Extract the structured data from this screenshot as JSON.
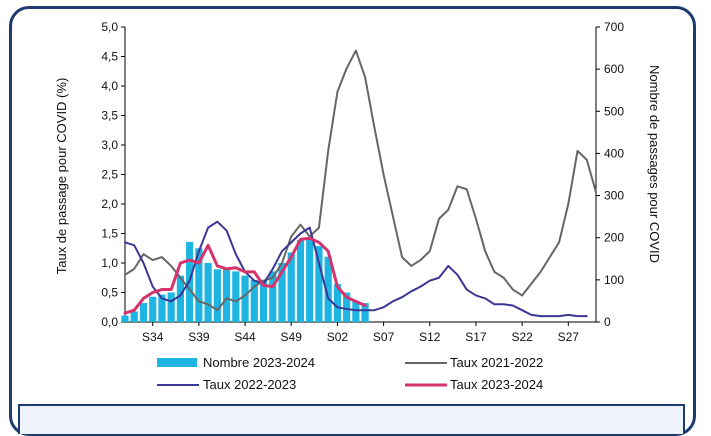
{
  "chart_data": {
    "type": "bar+line",
    "x_ticks": [
      "S34",
      "S39",
      "S44",
      "S49",
      "S02",
      "S07",
      "S12",
      "S17",
      "S22",
      "S27"
    ],
    "y_left": {
      "label": "Taux de passage pour COVID (%)",
      "min": 0,
      "max": 5,
      "ticks": [
        "0,0",
        "0,5",
        "1,0",
        "1,5",
        "2,0",
        "2,5",
        "3,0",
        "3,5",
        "4,0",
        "4,5",
        "5,0"
      ]
    },
    "y_right": {
      "label": "Nombre de passages pour COVID",
      "min": 0,
      "max": 700,
      "ticks": [
        "0",
        "100",
        "200",
        "300",
        "400",
        "500",
        "600",
        "700"
      ]
    },
    "legend": {
      "bars": "Nombre 2023-2024",
      "s2122": "Taux 2021-2022",
      "s2223": "Taux 2022-2023",
      "s2324": "Taux 2023-2024"
    },
    "bars": {
      "name": "Nombre 2023-2024",
      "axis": "right",
      "color": "#1fb5e3",
      "values": [
        15,
        25,
        45,
        60,
        65,
        70,
        110,
        190,
        175,
        140,
        125,
        125,
        120,
        110,
        100,
        100,
        120,
        140,
        165,
        195,
        200,
        180,
        155,
        90,
        70,
        50,
        45
      ]
    },
    "series": [
      {
        "name": "Taux 2021-2022",
        "color": "#666666",
        "width": 2,
        "axis": "left",
        "values": [
          0.8,
          0.9,
          1.15,
          1.05,
          1.1,
          0.95,
          0.75,
          0.55,
          0.35,
          0.3,
          0.2,
          0.4,
          0.35,
          0.45,
          0.6,
          0.7,
          0.75,
          1.0,
          1.45,
          1.65,
          1.45,
          1.6,
          2.9,
          3.9,
          4.3,
          4.6,
          4.15,
          3.3,
          2.5,
          1.8,
          1.1,
          0.95,
          1.05,
          1.2,
          1.75,
          1.9,
          2.3,
          2.25,
          1.75,
          1.2,
          0.85,
          0.75,
          0.55,
          0.45,
          0.65,
          0.85,
          1.1,
          1.35,
          2.0,
          2.9,
          2.75,
          2.2
        ]
      },
      {
        "name": "Taux 2022-2023",
        "color": "#3b3794",
        "width": 2,
        "axis": "left",
        "values": [
          1.35,
          1.3,
          1.0,
          0.6,
          0.4,
          0.35,
          0.45,
          0.7,
          1.2,
          1.6,
          1.7,
          1.55,
          1.15,
          0.85,
          0.7,
          0.65,
          0.9,
          1.2,
          1.35,
          1.5,
          1.6,
          1.0,
          0.4,
          0.25,
          0.22,
          0.2,
          0.2,
          0.2,
          0.25,
          0.35,
          0.42,
          0.52,
          0.6,
          0.7,
          0.75,
          0.95,
          0.8,
          0.55,
          0.45,
          0.4,
          0.3,
          0.3,
          0.28,
          0.2,
          0.12,
          0.1,
          0.1,
          0.1,
          0.12,
          0.1,
          0.1
        ]
      },
      {
        "name": "Taux 2023-2024",
        "color": "#d6336c",
        "width": 3,
        "axis": "left",
        "values": [
          0.15,
          0.2,
          0.4,
          0.5,
          0.55,
          0.55,
          1.0,
          1.05,
          1.0,
          1.3,
          0.95,
          0.9,
          0.92,
          0.85,
          0.85,
          0.62,
          0.6,
          0.85,
          1.1,
          1.4,
          1.42,
          1.35,
          1.2,
          0.6,
          0.42,
          0.35,
          0.28
        ]
      }
    ]
  }
}
